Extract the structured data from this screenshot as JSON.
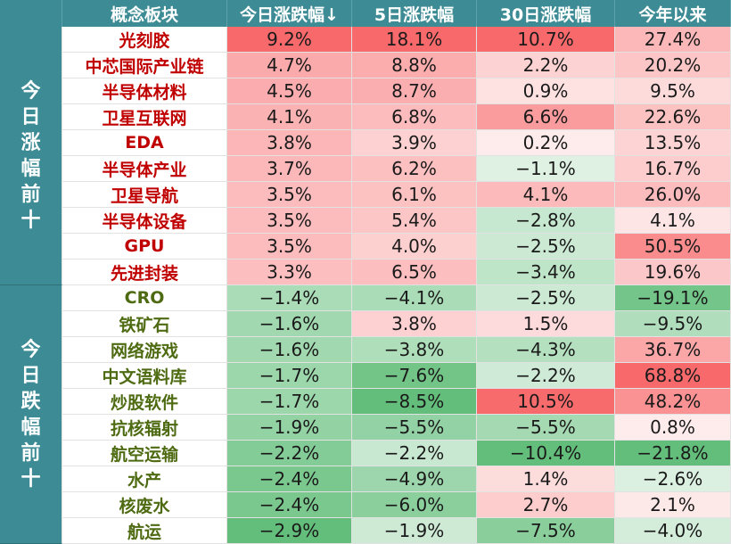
{
  "chart_data": {
    "type": "table",
    "columns": [
      "概念板块",
      "今日涨跌幅↓",
      "5日涨跌幅",
      "30日涨跌幅",
      "今年以来"
    ],
    "groups": [
      {
        "label": "今日涨幅前十",
        "rows": [
          {
            "name": "光刻胶",
            "values": [
              "9.2%",
              "18.1%",
              "10.7%",
              "27.4%"
            ],
            "nums": [
              9.2,
              18.1,
              10.7,
              27.4
            ]
          },
          {
            "name": "中芯国际产业链",
            "values": [
              "4.7%",
              "8.8%",
              "2.2%",
              "20.2%"
            ],
            "nums": [
              4.7,
              8.8,
              2.2,
              20.2
            ]
          },
          {
            "name": "半导体材料",
            "values": [
              "4.5%",
              "8.7%",
              "0.9%",
              "9.5%"
            ],
            "nums": [
              4.5,
              8.7,
              0.9,
              9.5
            ]
          },
          {
            "name": "卫星互联网",
            "values": [
              "4.1%",
              "6.8%",
              "6.6%",
              "22.6%"
            ],
            "nums": [
              4.1,
              6.8,
              6.6,
              22.6
            ]
          },
          {
            "name": "EDA",
            "values": [
              "3.8%",
              "3.9%",
              "0.2%",
              "13.5%"
            ],
            "nums": [
              3.8,
              3.9,
              0.2,
              13.5
            ]
          },
          {
            "name": "半导体产业",
            "values": [
              "3.7%",
              "6.2%",
              "−1.1%",
              "16.7%"
            ],
            "nums": [
              3.7,
              6.2,
              -1.1,
              16.7
            ]
          },
          {
            "name": "卫星导航",
            "values": [
              "3.5%",
              "6.1%",
              "4.1%",
              "26.0%"
            ],
            "nums": [
              3.5,
              6.1,
              4.1,
              26.0
            ]
          },
          {
            "name": "半导体设备",
            "values": [
              "3.5%",
              "5.4%",
              "−2.8%",
              "4.1%"
            ],
            "nums": [
              3.5,
              5.4,
              -2.8,
              4.1
            ]
          },
          {
            "name": "GPU",
            "values": [
              "3.5%",
              "4.0%",
              "−2.5%",
              "50.5%"
            ],
            "nums": [
              3.5,
              4.0,
              -2.5,
              50.5
            ]
          },
          {
            "name": "先进封装",
            "values": [
              "3.3%",
              "6.5%",
              "−3.4%",
              "19.6%"
            ],
            "nums": [
              3.3,
              6.5,
              -3.4,
              19.6
            ]
          }
        ]
      },
      {
        "label": "今日跌幅前十",
        "rows": [
          {
            "name": "CRO",
            "values": [
              "−1.4%",
              "−4.1%",
              "−2.5%",
              "−19.1%"
            ],
            "nums": [
              -1.4,
              -4.1,
              -2.5,
              -19.1
            ]
          },
          {
            "name": "铁矿石",
            "values": [
              "−1.6%",
              "3.8%",
              "1.5%",
              "−9.5%"
            ],
            "nums": [
              -1.6,
              3.8,
              1.5,
              -9.5
            ]
          },
          {
            "name": "网络游戏",
            "values": [
              "−1.6%",
              "−3.8%",
              "−4.3%",
              "36.7%"
            ],
            "nums": [
              -1.6,
              -3.8,
              -4.3,
              36.7
            ]
          },
          {
            "name": "中文语料库",
            "values": [
              "−1.7%",
              "−7.6%",
              "−2.2%",
              "68.8%"
            ],
            "nums": [
              -1.7,
              -7.6,
              -2.2,
              68.8
            ]
          },
          {
            "name": "炒股软件",
            "values": [
              "−1.7%",
              "−8.5%",
              "10.5%",
              "48.2%"
            ],
            "nums": [
              -1.7,
              -8.5,
              10.5,
              48.2
            ]
          },
          {
            "name": "抗核辐射",
            "values": [
              "−1.9%",
              "−5.5%",
              "−5.5%",
              "0.8%"
            ],
            "nums": [
              -1.9,
              -5.5,
              -5.5,
              0.8
            ]
          },
          {
            "name": "航空运输",
            "values": [
              "−2.2%",
              "−2.2%",
              "−10.4%",
              "−21.8%"
            ],
            "nums": [
              -2.2,
              -2.2,
              -10.4,
              -21.8
            ]
          },
          {
            "name": "水产",
            "values": [
              "−2.4%",
              "−4.9%",
              "1.4%",
              "−2.6%"
            ],
            "nums": [
              -2.4,
              -4.9,
              1.4,
              -2.6
            ]
          },
          {
            "name": "核废水",
            "values": [
              "−2.4%",
              "−6.0%",
              "2.7%",
              "2.1%"
            ],
            "nums": [
              -2.4,
              -6.0,
              2.7,
              2.1
            ]
          },
          {
            "name": "航运",
            "values": [
              "−2.9%",
              "−1.9%",
              "−7.5%",
              "−4.0%"
            ],
            "nums": [
              -2.9,
              -1.9,
              -7.5,
              -4.0
            ]
          }
        ]
      }
    ],
    "colors": {
      "header_bg": "#3d8c95",
      "header_text": "#ffffff",
      "up_name": "#c00000",
      "down_name": "#4e6b12",
      "positive": "#f8696b",
      "negative": "#63be7b"
    }
  }
}
